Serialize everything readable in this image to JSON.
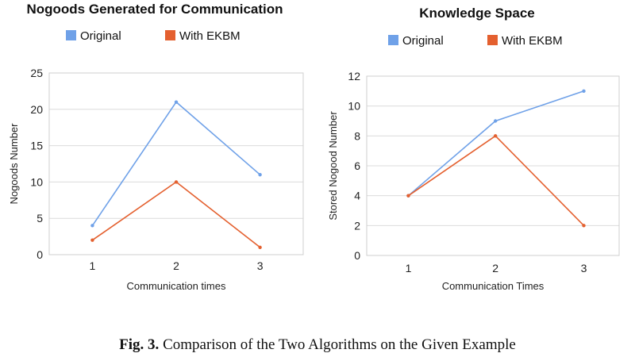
{
  "chart_data": [
    {
      "type": "line",
      "title": "Nogoods Generated for Communication",
      "xlabel": "Communication times",
      "ylabel": "Nogoods Number",
      "x": [
        1,
        2,
        3
      ],
      "ylim": [
        0,
        25
      ],
      "yticks": [
        0,
        5,
        10,
        15,
        20,
        25
      ],
      "grid": true,
      "legend_position": "top",
      "series": [
        {
          "name": "Original",
          "color": "#6fa1e8",
          "values": [
            4,
            21,
            11
          ]
        },
        {
          "name": "With EKBM",
          "color": "#e4602f",
          "values": [
            2,
            10,
            1
          ]
        }
      ]
    },
    {
      "type": "line",
      "title": "Knowledge Space",
      "xlabel": "Communication Times",
      "ylabel": "Stored Nogood Number",
      "x": [
        1,
        2,
        3
      ],
      "ylim": [
        0,
        12
      ],
      "yticks": [
        0,
        2,
        4,
        6,
        8,
        10,
        12
      ],
      "grid": true,
      "legend_position": "top",
      "series": [
        {
          "name": "Original",
          "color": "#6fa1e8",
          "values": [
            4,
            9,
            11
          ]
        },
        {
          "name": "With EKBM",
          "color": "#e4602f",
          "values": [
            4,
            8,
            2
          ]
        }
      ]
    }
  ],
  "caption": {
    "label": "Fig. 3.",
    "text": "Comparison of the Two Algorithms on the Given Example"
  }
}
